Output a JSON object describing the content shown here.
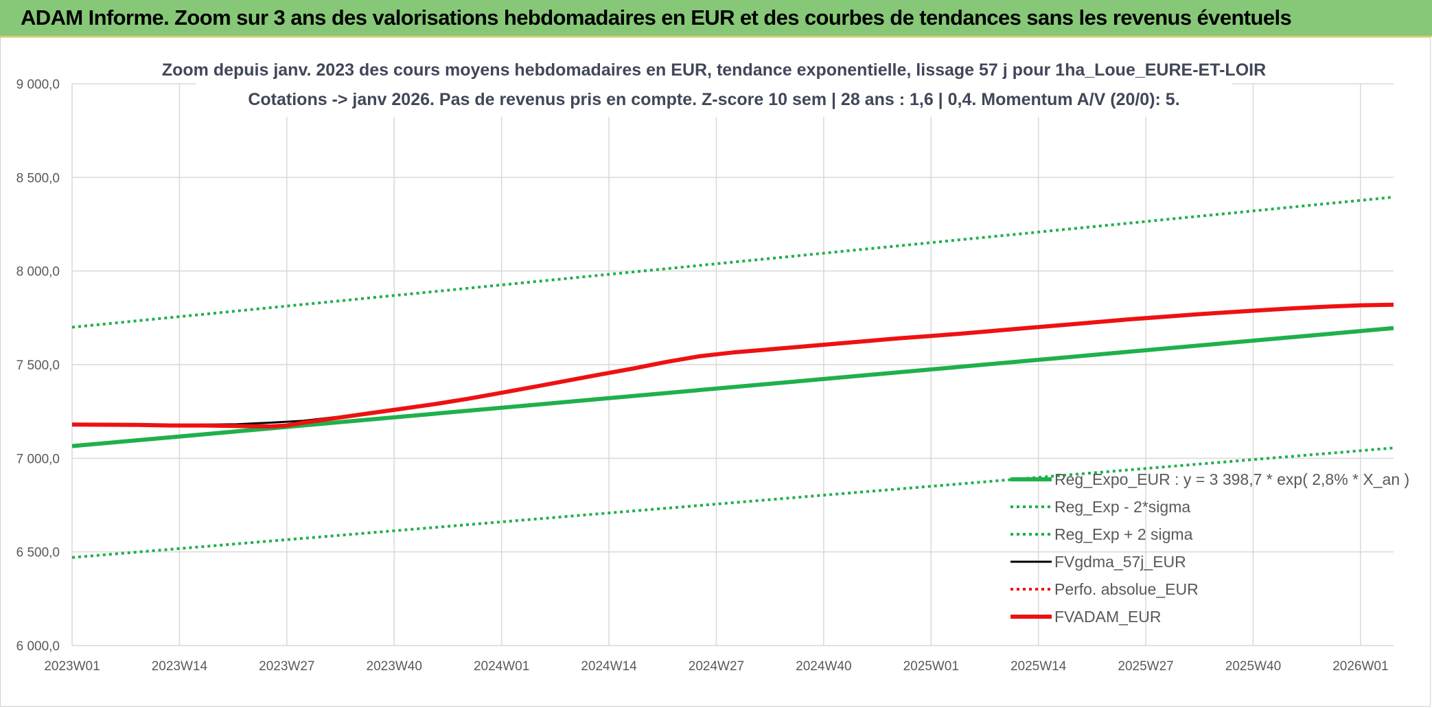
{
  "banner": {
    "title": "ADAM Informe. Zoom sur 3 ans des valorisations hebdomadaires en EUR et des courbes de tendances sans les revenus éventuels"
  },
  "colors": {
    "banner_bg": "#86c877",
    "trend_green": "#1fb04c",
    "fv_black": "#000000",
    "adam_red": "#ee1111",
    "grid": "#d9d9d9",
    "axis_text": "#595959",
    "title_text": "#404758"
  },
  "chart_data": {
    "type": "line",
    "title_line1": "Zoom depuis janv. 2023 des cours moyens hebdomadaires en EUR, tendance exponentielle, lissage 57 j pour 1ha_Loue_EURE-ET-LOIR",
    "title_line2": "Cotations -> janv 2026. Pas de revenus pris en compte. Z-score 10 sem | 28 ans : 1,6 | 0,4. Momentum A/V (20/0): 5.",
    "x_tick_labels": [
      "2023W01",
      "2023W14",
      "2023W27",
      "2023W40",
      "2024W01",
      "2024W14",
      "2024W27",
      "2024W40",
      "2025W01",
      "2025W14",
      "2025W27",
      "2025W40",
      "2026W01"
    ],
    "x_range_weeks": [
      0,
      160
    ],
    "ylim": [
      6000,
      9000
    ],
    "y_ticks": [
      6000,
      6500,
      7000,
      7500,
      8000,
      8500,
      9000
    ],
    "y_tick_labels": [
      "6 000,0",
      "6 500,0",
      "7 000,0",
      "7 500,0",
      "8 000,0",
      "8 500,0",
      "9 000,0"
    ],
    "grid": true,
    "legend_position": "bottom-right",
    "series": [
      {
        "name": "Reg_Expo_EUR : y = 3 398,7 * exp( 2,8% *  X_an )",
        "style": "solid-thick",
        "color": "#1fb04c",
        "points": [
          [
            0,
            7065
          ],
          [
            160,
            7695
          ]
        ]
      },
      {
        "name": "Reg_Exp - 2*sigma",
        "style": "dotted",
        "color": "#1fb04c",
        "points": [
          [
            0,
            6470
          ],
          [
            160,
            7055
          ]
        ]
      },
      {
        "name": "Reg_Exp + 2 sigma",
        "style": "dotted",
        "color": "#1fb04c",
        "points": [
          [
            0,
            7700
          ],
          [
            160,
            8395
          ]
        ]
      },
      {
        "name": "FVgdma_57j_EUR",
        "style": "solid",
        "color": "#000000",
        "points": [
          [
            0,
            7180
          ],
          [
            8,
            7180
          ],
          [
            13,
            7178
          ],
          [
            20,
            7182
          ],
          [
            24,
            7190
          ],
          [
            28,
            7200
          ],
          [
            32,
            7220
          ],
          [
            36,
            7245
          ],
          [
            40,
            7268
          ],
          [
            44,
            7290
          ],
          [
            48,
            7318
          ],
          [
            52,
            7350
          ],
          [
            56,
            7382
          ],
          [
            60,
            7415
          ],
          [
            64,
            7448
          ],
          [
            68,
            7480
          ],
          [
            72,
            7512
          ],
          [
            76,
            7540
          ],
          [
            80,
            7562
          ],
          [
            84,
            7580
          ],
          [
            88,
            7595
          ],
          [
            92,
            7610
          ],
          [
            96,
            7625
          ],
          [
            100,
            7640
          ],
          [
            104,
            7652
          ],
          [
            108,
            7665
          ],
          [
            112,
            7680
          ],
          [
            116,
            7695
          ],
          [
            120,
            7710
          ],
          [
            124,
            7725
          ],
          [
            128,
            7740
          ],
          [
            132,
            7752
          ],
          [
            136,
            7765
          ],
          [
            140,
            7777
          ],
          [
            144,
            7788
          ],
          [
            148,
            7798
          ],
          [
            152,
            7806
          ],
          [
            156,
            7813
          ],
          [
            160,
            7817
          ]
        ]
      },
      {
        "name": "Perfo. absolue_EUR",
        "style": "dotted",
        "color": "#ee1111",
        "points": []
      },
      {
        "name": "FVADAM_EUR",
        "style": "solid-thick",
        "color": "#ee1111",
        "points": [
          [
            0,
            7180
          ],
          [
            8,
            7178
          ],
          [
            12,
            7175
          ],
          [
            16,
            7175
          ],
          [
            20,
            7172
          ],
          [
            24,
            7170
          ],
          [
            26,
            7175
          ],
          [
            28,
            7190
          ],
          [
            32,
            7215
          ],
          [
            36,
            7240
          ],
          [
            40,
            7265
          ],
          [
            44,
            7290
          ],
          [
            48,
            7318
          ],
          [
            52,
            7350
          ],
          [
            56,
            7382
          ],
          [
            60,
            7415
          ],
          [
            64,
            7448
          ],
          [
            68,
            7480
          ],
          [
            72,
            7515
          ],
          [
            76,
            7545
          ],
          [
            80,
            7565
          ],
          [
            84,
            7580
          ],
          [
            88,
            7595
          ],
          [
            92,
            7610
          ],
          [
            96,
            7625
          ],
          [
            100,
            7640
          ],
          [
            104,
            7653
          ],
          [
            108,
            7667
          ],
          [
            112,
            7682
          ],
          [
            116,
            7697
          ],
          [
            120,
            7712
          ],
          [
            124,
            7727
          ],
          [
            128,
            7742
          ],
          [
            132,
            7755
          ],
          [
            136,
            7768
          ],
          [
            140,
            7780
          ],
          [
            144,
            7791
          ],
          [
            148,
            7801
          ],
          [
            152,
            7810
          ],
          [
            156,
            7817
          ],
          [
            160,
            7820
          ]
        ]
      }
    ]
  }
}
